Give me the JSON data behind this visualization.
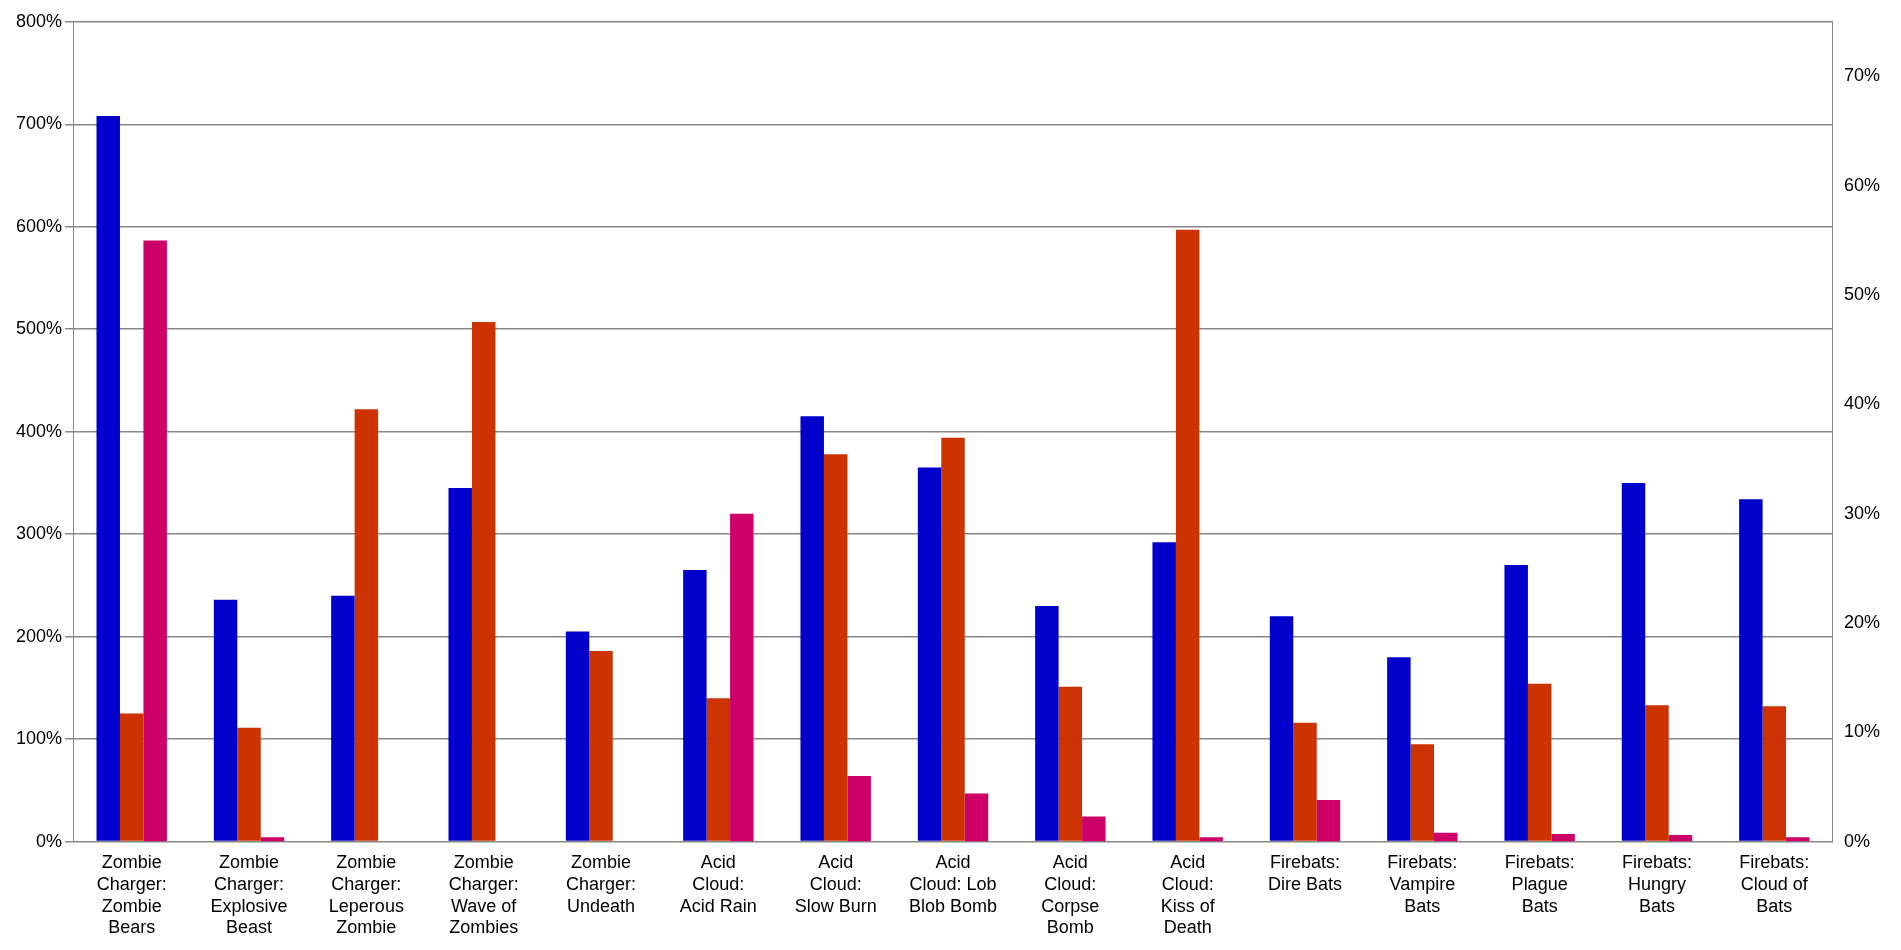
{
  "chart_data": {
    "type": "bar",
    "categories": [
      "Zombie Charger: Zombie Bears",
      "Zombie Charger: Explosive Beast",
      "Zombie Charger: Leperous Zombie",
      "Zombie Charger: Wave of Zombies",
      "Zombie Charger: Undeath",
      "Acid Cloud: Acid Rain",
      "Acid Cloud: Slow Burn",
      "Acid Cloud: Lob Blob Bomb",
      "Acid Cloud: Corpse Bomb",
      "Acid Cloud: Kiss of Death",
      "Firebats: Dire Bats",
      "Firebats: Vampire Bats",
      "Firebats: Plague Bats",
      "Firebats: Hungry Bats",
      "Firebats: Cloud of Bats"
    ],
    "series": [
      {
        "color": "#0000cc",
        "values": [
          708,
          236,
          240,
          345,
          205,
          265,
          415,
          365,
          230,
          292,
          220,
          180,
          270,
          350,
          334
        ]
      },
      {
        "color": "#cc3300",
        "values": [
          125,
          111,
          422,
          507,
          186,
          140,
          378,
          394,
          151,
          597,
          116,
          95,
          154,
          133,
          132
        ]
      },
      {
        "color": "#cc0066",
        "axis": "y2",
        "values": [
          55,
          0.4,
          null,
          null,
          null,
          30,
          6,
          4.4,
          2.3,
          0.4,
          3.8,
          0.8,
          0.7,
          0.6,
          0.4
        ]
      }
    ],
    "ylim": [
      0,
      800
    ],
    "yticks": [
      {
        "value": 0,
        "label": "0%"
      },
      {
        "value": 100,
        "label": "100%"
      },
      {
        "value": 200,
        "label": "200%"
      },
      {
        "value": 300,
        "label": "300%"
      },
      {
        "value": 400,
        "label": "400%"
      },
      {
        "value": 500,
        "label": "500%"
      },
      {
        "value": 600,
        "label": "600%"
      },
      {
        "value": 700,
        "label": "700%"
      },
      {
        "value": 800,
        "label": "800%"
      }
    ],
    "y2lim": [
      0,
      75
    ],
    "y2ticks": [
      {
        "value": 0,
        "label": "0%"
      },
      {
        "value": 10,
        "label": "10%"
      },
      {
        "value": 20,
        "label": "20%"
      },
      {
        "value": 30,
        "label": "30%"
      },
      {
        "value": 40,
        "label": "40%"
      },
      {
        "value": 50,
        "label": "50%"
      },
      {
        "value": 60,
        "label": "60%"
      },
      {
        "value": 70,
        "label": "70%"
      }
    ],
    "grid": "y",
    "legend": false
  }
}
